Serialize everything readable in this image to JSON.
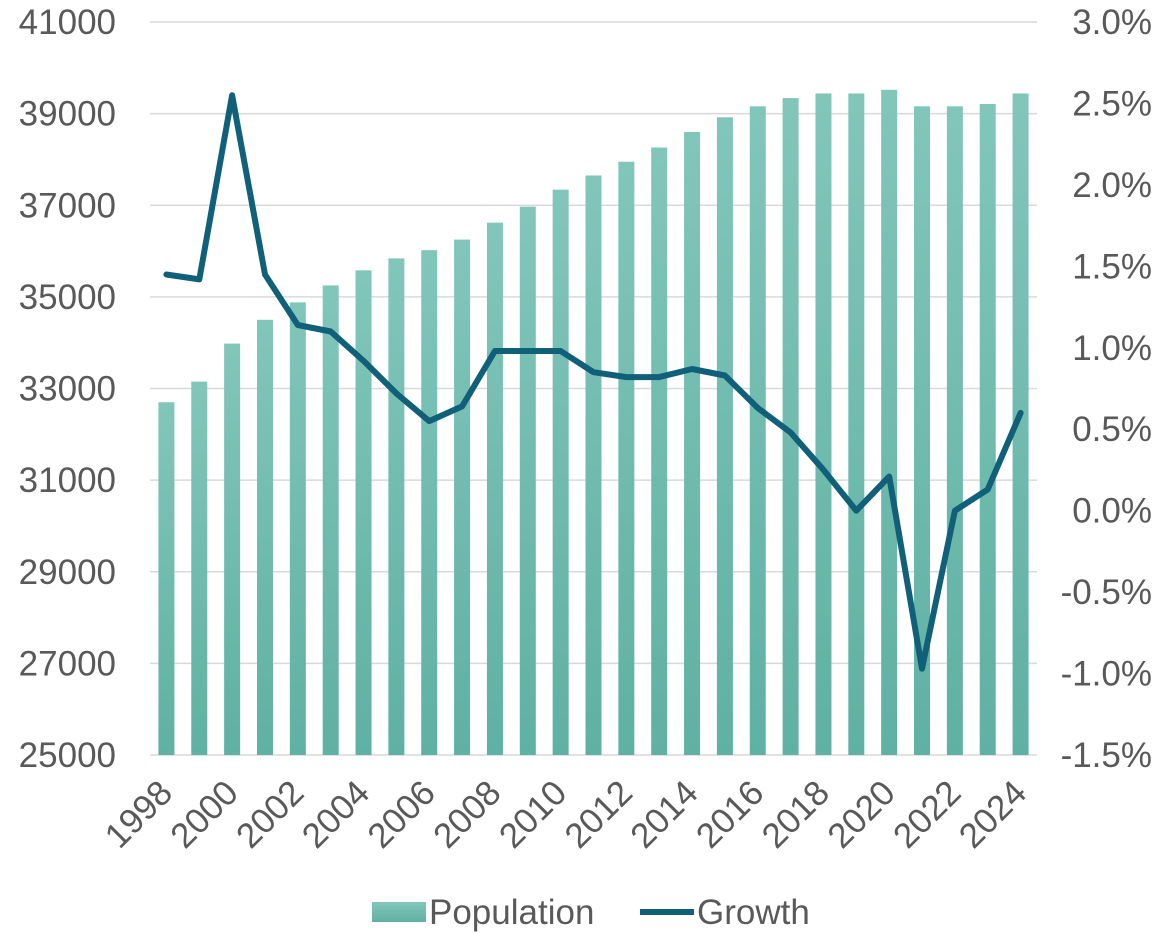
{
  "chart_data": {
    "type": "bar",
    "categories": [
      "1998",
      "1999",
      "2000",
      "2001",
      "2002",
      "2003",
      "2004",
      "2005",
      "2006",
      "2007",
      "2008",
      "2009",
      "2010",
      "2011",
      "2012",
      "2013",
      "2014",
      "2015",
      "2016",
      "2017",
      "2018",
      "2019",
      "2020",
      "2021",
      "2022",
      "2023",
      "2024"
    ],
    "x_tick_labels": [
      "1998",
      "2000",
      "2002",
      "2004",
      "2006",
      "2008",
      "2010",
      "2012",
      "2014",
      "2016",
      "2018",
      "2020",
      "2022",
      "2024"
    ],
    "series": [
      {
        "name": "Population",
        "type": "bar",
        "axis": "left",
        "color": "#6dbbad",
        "values": [
          32700,
          33150,
          33980,
          34500,
          34880,
          35250,
          35580,
          35840,
          36020,
          36250,
          36620,
          36970,
          37340,
          37650,
          37950,
          38260,
          38600,
          38920,
          39160,
          39340,
          39440,
          39440,
          39520,
          39160,
          39160,
          39210,
          39440
        ]
      },
      {
        "name": "Growth",
        "type": "line",
        "axis": "right",
        "color": "#10607a",
        "values": [
          1.45,
          1.42,
          2.55,
          1.45,
          1.14,
          1.1,
          0.92,
          0.72,
          0.55,
          0.64,
          0.98,
          0.98,
          0.98,
          0.85,
          0.82,
          0.82,
          0.87,
          0.83,
          0.63,
          0.48,
          0.25,
          0.0,
          0.21,
          -0.97,
          0.0,
          0.13,
          0.6
        ]
      }
    ],
    "y_left": {
      "min": 25000,
      "max": 41000,
      "ticks": [
        25000,
        27000,
        29000,
        31000,
        33000,
        35000,
        37000,
        39000,
        41000
      ]
    },
    "y_right": {
      "min": -1.5,
      "max": 3.0,
      "ticks": [
        "-1.5%",
        "-1.0%",
        "-0.5%",
        "0.0%",
        "0.5%",
        "1.0%",
        "1.5%",
        "2.0%",
        "2.5%",
        "3.0%"
      ]
    },
    "grid": true,
    "legend_position": "bottom",
    "legend": [
      {
        "label": "Population",
        "marker": "bar",
        "color": "#6dbbad"
      },
      {
        "label": "Growth",
        "marker": "line",
        "color": "#10607a"
      }
    ]
  }
}
